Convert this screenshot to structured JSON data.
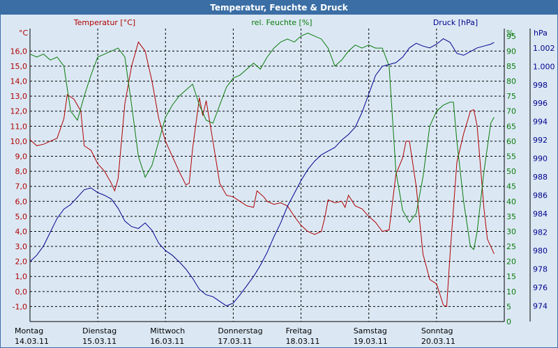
{
  "window": {
    "title": "Temperatur, Feuchte & Druck"
  },
  "colors": {
    "temperature": "#b00000",
    "humidity": "#0a7a0a",
    "pressure": "#00008c",
    "grid": "#000000",
    "background": "#dbe8f4",
    "titlebar": "#3a6ea5"
  },
  "chart_data": {
    "type": "line",
    "title": "Temperatur, Feuchte & Druck",
    "days": [
      {
        "name": "Montag",
        "date": "14.03.11"
      },
      {
        "name": "Dienstag",
        "date": "15.03.11"
      },
      {
        "name": "Mittwoch",
        "date": "16.03.11"
      },
      {
        "name": "Donnerstag",
        "date": "17.03.11"
      },
      {
        "name": "Freitag",
        "date": "18.03.11"
      },
      {
        "name": "Samstag",
        "date": "19.03.11"
      },
      {
        "name": "Sonntag",
        "date": "20.03.11"
      }
    ],
    "x_range": [
      0,
      7
    ],
    "axes": {
      "temperature": {
        "unit": "°C",
        "label": "Temperatur [°C]",
        "range": [
          -2,
          17.5
        ],
        "ticks": [
          "-1,0",
          "0,0",
          "1,0",
          "2,0",
          "3,0",
          "4,0",
          "5,0",
          "6,0",
          "7,0",
          "8,0",
          "9,0",
          "10,0",
          "11,0",
          "12,0",
          "13,0",
          "14,0",
          "15,0",
          "16,0"
        ],
        "tick_values": [
          -1,
          0,
          1,
          2,
          3,
          4,
          5,
          6,
          7,
          8,
          9,
          10,
          11,
          12,
          13,
          14,
          15,
          16
        ]
      },
      "humidity": {
        "unit": "%",
        "label": "rel. Feuchte [%]",
        "range": [
          0,
          97.5
        ],
        "ticks": [
          "0",
          "5",
          "10",
          "15",
          "20",
          "25",
          "30",
          "35",
          "40",
          "45",
          "50",
          "55",
          "60",
          "65",
          "70",
          "75",
          "80",
          "85",
          "90",
          "95"
        ],
        "tick_values": [
          0,
          5,
          10,
          15,
          20,
          25,
          30,
          35,
          40,
          45,
          50,
          55,
          60,
          65,
          70,
          75,
          80,
          85,
          90,
          95
        ]
      },
      "pressure": {
        "unit": "hPa",
        "label": "Druck [hPa]",
        "range": [
          972.3,
          1004.1
        ],
        "ticks": [
          "974",
          "976",
          "978",
          "980",
          "982",
          "984",
          "986",
          "988",
          "990",
          "992",
          "994",
          "996",
          "998",
          "1.000",
          "1.002"
        ],
        "tick_values": [
          974,
          976,
          978,
          980,
          982,
          984,
          986,
          988,
          990,
          992,
          994,
          996,
          998,
          1000,
          1002
        ]
      }
    },
    "series": [
      {
        "name": "Temperatur [°C]",
        "axis": "temperature",
        "color": "#b00000",
        "points": [
          [
            0,
            10.1
          ],
          [
            0.1,
            9.7
          ],
          [
            0.2,
            9.8
          ],
          [
            0.3,
            10.0
          ],
          [
            0.4,
            10.2
          ],
          [
            0.5,
            11.5
          ],
          [
            0.55,
            13.1
          ],
          [
            0.65,
            12.8
          ],
          [
            0.75,
            12.0
          ],
          [
            0.8,
            9.7
          ],
          [
            0.9,
            9.4
          ],
          [
            1.0,
            8.5
          ],
          [
            1.1,
            8.0
          ],
          [
            1.2,
            7.2
          ],
          [
            1.25,
            6.7
          ],
          [
            1.3,
            7.5
          ],
          [
            1.4,
            12.5
          ],
          [
            1.5,
            15.0
          ],
          [
            1.6,
            16.6
          ],
          [
            1.7,
            16.0
          ],
          [
            1.8,
            14.0
          ],
          [
            1.9,
            11.5
          ],
          [
            2.0,
            10.0
          ],
          [
            2.1,
            9.0
          ],
          [
            2.2,
            8.0
          ],
          [
            2.3,
            7.1
          ],
          [
            2.35,
            7.2
          ],
          [
            2.4,
            9.5
          ],
          [
            2.5,
            12.9
          ],
          [
            2.55,
            11.7
          ],
          [
            2.6,
            12.7
          ],
          [
            2.7,
            10.0
          ],
          [
            2.8,
            7.2
          ],
          [
            2.9,
            6.4
          ],
          [
            3.0,
            6.3
          ],
          [
            3.1,
            6.0
          ],
          [
            3.2,
            5.7
          ],
          [
            3.3,
            5.6
          ],
          [
            3.35,
            6.7
          ],
          [
            3.45,
            6.3
          ],
          [
            3.5,
            6.0
          ],
          [
            3.6,
            5.8
          ],
          [
            3.7,
            5.9
          ],
          [
            3.8,
            5.7
          ],
          [
            3.9,
            5.0
          ],
          [
            4.0,
            4.4
          ],
          [
            4.1,
            4.0
          ],
          [
            4.2,
            3.8
          ],
          [
            4.3,
            4.0
          ],
          [
            4.35,
            4.9
          ],
          [
            4.4,
            6.1
          ],
          [
            4.5,
            5.9
          ],
          [
            4.6,
            6.0
          ],
          [
            4.65,
            5.6
          ],
          [
            4.7,
            6.4
          ],
          [
            4.8,
            5.7
          ],
          [
            4.9,
            5.5
          ],
          [
            5.0,
            5.0
          ],
          [
            5.1,
            4.6
          ],
          [
            5.2,
            4.0
          ],
          [
            5.3,
            4.1
          ],
          [
            5.4,
            7.8
          ],
          [
            5.5,
            8.9
          ],
          [
            5.55,
            10.0
          ],
          [
            5.6,
            10.0
          ],
          [
            5.7,
            7.0
          ],
          [
            5.8,
            2.5
          ],
          [
            5.9,
            0.8
          ],
          [
            6.0,
            0.5
          ],
          [
            6.1,
            -0.9
          ],
          [
            6.15,
            -1.0
          ],
          [
            6.2,
            2.5
          ],
          [
            6.3,
            8.6
          ],
          [
            6.4,
            10.5
          ],
          [
            6.5,
            12.0
          ],
          [
            6.55,
            12.1
          ],
          [
            6.6,
            11.0
          ],
          [
            6.7,
            5.5
          ],
          [
            6.75,
            3.5
          ],
          [
            6.8,
            3.0
          ],
          [
            6.85,
            2.5
          ]
        ]
      },
      {
        "name": "rel. Feuchte [%]",
        "axis": "humidity",
        "color": "#0a7a0a",
        "points": [
          [
            0,
            89
          ],
          [
            0.1,
            88
          ],
          [
            0.2,
            89
          ],
          [
            0.3,
            87
          ],
          [
            0.4,
            88
          ],
          [
            0.5,
            85
          ],
          [
            0.6,
            70
          ],
          [
            0.7,
            67
          ],
          [
            0.8,
            75
          ],
          [
            0.9,
            82
          ],
          [
            1.0,
            88
          ],
          [
            1.1,
            89
          ],
          [
            1.2,
            90
          ],
          [
            1.3,
            91
          ],
          [
            1.4,
            88
          ],
          [
            1.5,
            72
          ],
          [
            1.6,
            55
          ],
          [
            1.7,
            48
          ],
          [
            1.8,
            52
          ],
          [
            1.9,
            60
          ],
          [
            2.0,
            68
          ],
          [
            2.1,
            72
          ],
          [
            2.2,
            75
          ],
          [
            2.3,
            77
          ],
          [
            2.4,
            79
          ],
          [
            2.5,
            72
          ],
          [
            2.6,
            67
          ],
          [
            2.7,
            66
          ],
          [
            2.8,
            72
          ],
          [
            2.9,
            78
          ],
          [
            3.0,
            81
          ],
          [
            3.1,
            82
          ],
          [
            3.2,
            84
          ],
          [
            3.3,
            86
          ],
          [
            3.4,
            84
          ],
          [
            3.5,
            88
          ],
          [
            3.6,
            91
          ],
          [
            3.7,
            93
          ],
          [
            3.8,
            94
          ],
          [
            3.9,
            93
          ],
          [
            4.0,
            95
          ],
          [
            4.1,
            96
          ],
          [
            4.2,
            95
          ],
          [
            4.3,
            94
          ],
          [
            4.4,
            91
          ],
          [
            4.5,
            85
          ],
          [
            4.6,
            87
          ],
          [
            4.7,
            90
          ],
          [
            4.8,
            92
          ],
          [
            4.9,
            91
          ],
          [
            5.0,
            92
          ],
          [
            5.1,
            91
          ],
          [
            5.2,
            91
          ],
          [
            5.3,
            85
          ],
          [
            5.4,
            50
          ],
          [
            5.5,
            37
          ],
          [
            5.6,
            33
          ],
          [
            5.7,
            36
          ],
          [
            5.8,
            48
          ],
          [
            5.9,
            65
          ],
          [
            6.0,
            70
          ],
          [
            6.1,
            72
          ],
          [
            6.2,
            73
          ],
          [
            6.25,
            73
          ],
          [
            6.3,
            60
          ],
          [
            6.4,
            40
          ],
          [
            6.5,
            25
          ],
          [
            6.55,
            24
          ],
          [
            6.6,
            30
          ],
          [
            6.7,
            50
          ],
          [
            6.8,
            66
          ],
          [
            6.85,
            68
          ]
        ]
      },
      {
        "name": "Druck [hPa]",
        "axis": "pressure",
        "color": "#00008c",
        "points": [
          [
            0,
            978.8
          ],
          [
            0.1,
            979.5
          ],
          [
            0.2,
            980.5
          ],
          [
            0.3,
            982
          ],
          [
            0.4,
            983.5
          ],
          [
            0.5,
            984.5
          ],
          [
            0.6,
            985
          ],
          [
            0.7,
            985.8
          ],
          [
            0.8,
            986.6
          ],
          [
            0.9,
            986.8
          ],
          [
            1.0,
            986.3
          ],
          [
            1.1,
            986
          ],
          [
            1.2,
            985.6
          ],
          [
            1.3,
            984.6
          ],
          [
            1.4,
            983.2
          ],
          [
            1.5,
            982.6
          ],
          [
            1.6,
            982.4
          ],
          [
            1.7,
            983
          ],
          [
            1.8,
            982.2
          ],
          [
            1.9,
            980.8
          ],
          [
            2.0,
            980
          ],
          [
            2.1,
            979.5
          ],
          [
            2.2,
            978.8
          ],
          [
            2.3,
            978
          ],
          [
            2.4,
            977
          ],
          [
            2.5,
            975.8
          ],
          [
            2.6,
            975.2
          ],
          [
            2.7,
            975
          ],
          [
            2.8,
            974.5
          ],
          [
            2.9,
            974
          ],
          [
            3.0,
            974.3
          ],
          [
            3.1,
            975.2
          ],
          [
            3.2,
            976.2
          ],
          [
            3.3,
            977.2
          ],
          [
            3.4,
            978.4
          ],
          [
            3.5,
            979.8
          ],
          [
            3.6,
            981.5
          ],
          [
            3.7,
            983
          ],
          [
            3.8,
            984.8
          ],
          [
            3.9,
            986.2
          ],
          [
            4.0,
            987.6
          ],
          [
            4.1,
            988.8
          ],
          [
            4.2,
            989.7
          ],
          [
            4.3,
            990.4
          ],
          [
            4.4,
            990.8
          ],
          [
            4.5,
            991.2
          ],
          [
            4.6,
            992
          ],
          [
            4.7,
            992.6
          ],
          [
            4.8,
            993.4
          ],
          [
            4.9,
            995
          ],
          [
            5.0,
            997
          ],
          [
            5.1,
            999
          ],
          [
            5.2,
            1000
          ],
          [
            5.3,
            1000.2
          ],
          [
            5.4,
            1000.4
          ],
          [
            5.5,
            1001
          ],
          [
            5.6,
            1002
          ],
          [
            5.7,
            1002.5
          ],
          [
            5.8,
            1002.2
          ],
          [
            5.9,
            1002
          ],
          [
            6.0,
            1002.4
          ],
          [
            6.1,
            1003
          ],
          [
            6.2,
            1002.6
          ],
          [
            6.3,
            1001.4
          ],
          [
            6.4,
            1001.2
          ],
          [
            6.5,
            1001.6
          ],
          [
            6.6,
            1002
          ],
          [
            6.7,
            1002.2
          ],
          [
            6.8,
            1002.4
          ],
          [
            6.85,
            1002.6
          ]
        ]
      }
    ]
  }
}
